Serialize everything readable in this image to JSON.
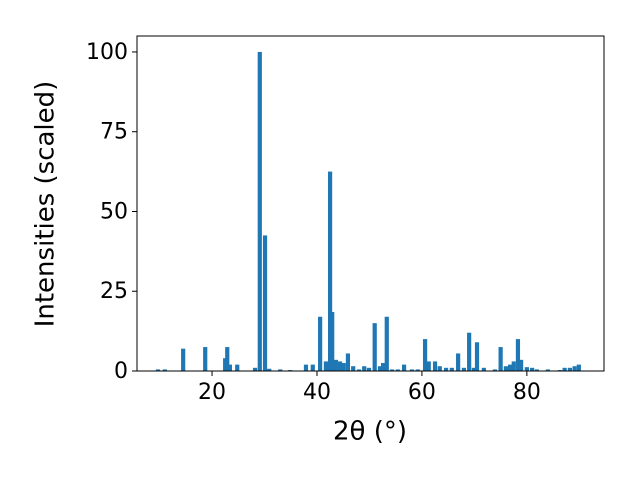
{
  "chart_data": {
    "type": "bar",
    "x_label": "2θ (°)",
    "y_label": "Intensities (scaled)",
    "x": [
      9.7,
      11.0,
      14.5,
      18.7,
      22.5,
      22.9,
      23.4,
      24.8,
      28.2,
      29.1,
      30.1,
      30.9,
      33.0,
      34.9,
      37.9,
      39.2,
      40.6,
      41.7,
      42.5,
      42.9,
      43.6,
      44.4,
      45.1,
      45.9,
      46.9,
      48.0,
      49.0,
      49.9,
      51.0,
      52.0,
      52.6,
      53.3,
      54.3,
      55.4,
      56.6,
      58.1,
      59.2,
      60.6,
      61.3,
      62.5,
      63.4,
      64.6,
      65.7,
      66.9,
      68.0,
      69.0,
      69.9,
      70.5,
      71.8,
      73.9,
      75.0,
      76.0,
      76.8,
      77.5,
      78.3,
      78.9,
      80.0,
      81.0,
      81.9,
      84.0,
      86.3,
      87.2,
      88.2,
      89.1,
      89.9
    ],
    "values": [
      0.5,
      0.5,
      7,
      7.5,
      4,
      7.5,
      2,
      2,
      1,
      100,
      42.5,
      0.7,
      0.5,
      0.3,
      2,
      2,
      17,
      3,
      62.5,
      18.5,
      3.5,
      3,
      2.5,
      5.5,
      1.5,
      0.5,
      1.5,
      1,
      15,
      1.5,
      2.5,
      17,
      0.5,
      0.5,
      2,
      0.5,
      0.5,
      10,
      3,
      3,
      1.5,
      1,
      1,
      5.5,
      1,
      12,
      1,
      9,
      1,
      0.5,
      7.5,
      1.5,
      2,
      3,
      10,
      3.5,
      1.2,
      1,
      0.5,
      0.5,
      0.3,
      1,
      1,
      1.5,
      2
    ],
    "color": "#1f77b4",
    "xlim": [
      5.7,
      94.7
    ],
    "ylim": [
      0,
      105
    ],
    "xticks": [
      20,
      40,
      60,
      80
    ],
    "yticks": [
      0,
      25,
      50,
      75,
      100
    ]
  }
}
